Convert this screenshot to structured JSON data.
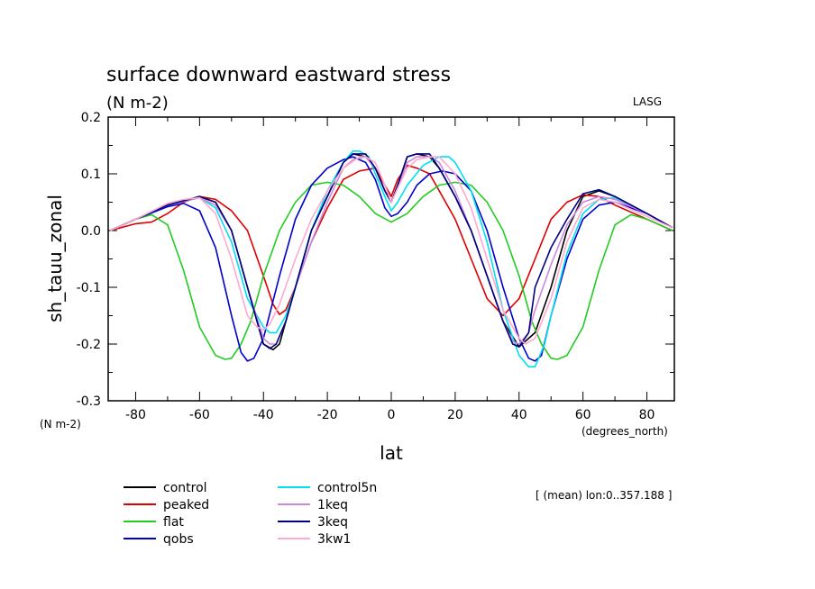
{
  "chart_data": {
    "type": "line",
    "title": "surface downward eastward stress",
    "subtitle": "(N m-2)",
    "corner_label": "LASG",
    "xlabel": "lat",
    "xunits": "(degrees_north)",
    "ylabel": "sh_tauu_zonal",
    "yunits": "(N m-2)",
    "xlim": [
      -88.6,
      88.6
    ],
    "ylim": [
      -0.3,
      0.2
    ],
    "xticks": [
      -80,
      -60,
      -40,
      -20,
      0,
      20,
      40,
      60,
      80
    ],
    "yticks": [
      0.2,
      0.1,
      0.0,
      -0.1,
      -0.2,
      -0.3
    ],
    "ytick_labels": [
      "0.2",
      "0.1",
      "0.0",
      "-0.1",
      "-0.2",
      "-0.3"
    ],
    "note": "[ (mean) lon:0..357.188 ]",
    "legend_position": "bottom-left",
    "series": [
      {
        "name": "control",
        "color": "#000000",
        "x": [
          -88,
          -80,
          -70,
          -60,
          -55,
          -50,
          -45,
          -40,
          -37,
          -35,
          -30,
          -25,
          -20,
          -15,
          -12,
          -8,
          -5,
          -2,
          0,
          2,
          5,
          8,
          12,
          15,
          20,
          25,
          30,
          35,
          40,
          45,
          50,
          55,
          60,
          65,
          70,
          80,
          88
        ],
        "y": [
          0.0,
          0.02,
          0.045,
          0.06,
          0.05,
          0.0,
          -0.1,
          -0.2,
          -0.21,
          -0.2,
          -0.1,
          0.0,
          0.06,
          0.12,
          0.135,
          0.13,
          0.11,
          0.07,
          0.05,
          0.08,
          0.13,
          0.135,
          0.13,
          0.11,
          0.06,
          0.0,
          -0.08,
          -0.16,
          -0.205,
          -0.18,
          -0.1,
          0.0,
          0.06,
          0.07,
          0.06,
          0.03,
          0.005
        ]
      },
      {
        "name": "peaked",
        "color": "#dd0000",
        "x": [
          -88,
          -80,
          -75,
          -70,
          -65,
          -60,
          -55,
          -50,
          -45,
          -40,
          -37,
          -35,
          -33,
          -30,
          -25,
          -20,
          -15,
          -10,
          -5,
          -2,
          0,
          2,
          5,
          8,
          12,
          15,
          20,
          25,
          30,
          35,
          40,
          45,
          50,
          55,
          60,
          65,
          70,
          80,
          88
        ],
        "y": [
          0.0,
          0.012,
          0.015,
          0.03,
          0.05,
          0.06,
          0.055,
          0.035,
          0.0,
          -0.08,
          -0.13,
          -0.148,
          -0.14,
          -0.1,
          -0.02,
          0.04,
          0.09,
          0.105,
          0.11,
          0.08,
          0.06,
          0.09,
          0.115,
          0.11,
          0.1,
          0.07,
          0.02,
          -0.05,
          -0.12,
          -0.15,
          -0.12,
          -0.05,
          0.02,
          0.05,
          0.063,
          0.06,
          0.045,
          0.02,
          0.0
        ]
      },
      {
        "name": "flat",
        "color": "#22cc22",
        "x": [
          -88,
          -80,
          -75,
          -70,
          -65,
          -60,
          -55,
          -52,
          -50,
          -47,
          -44,
          -40,
          -35,
          -30,
          -25,
          -20,
          -15,
          -10,
          -5,
          0,
          5,
          10,
          15,
          20,
          25,
          30,
          35,
          40,
          44,
          47,
          50,
          52,
          55,
          60,
          65,
          70,
          75,
          80,
          88
        ],
        "y": [
          0.0,
          0.02,
          0.028,
          0.01,
          -0.07,
          -0.17,
          -0.22,
          -0.227,
          -0.225,
          -0.2,
          -0.16,
          -0.08,
          0.0,
          0.05,
          0.08,
          0.085,
          0.08,
          0.06,
          0.03,
          0.015,
          0.03,
          0.06,
          0.08,
          0.085,
          0.08,
          0.05,
          0.0,
          -0.08,
          -0.16,
          -0.2,
          -0.225,
          -0.227,
          -0.22,
          -0.17,
          -0.07,
          0.01,
          0.028,
          0.02,
          0.0
        ]
      },
      {
        "name": "qobs",
        "color": "#0000cc",
        "x": [
          -88,
          -80,
          -70,
          -65,
          -60,
          -55,
          -50,
          -47,
          -45,
          -43,
          -40,
          -35,
          -30,
          -25,
          -20,
          -15,
          -12,
          -8,
          -5,
          -2,
          0,
          2,
          5,
          8,
          12,
          16,
          20,
          25,
          30,
          35,
          40,
          43,
          45,
          47,
          50,
          55,
          60,
          65,
          70,
          80,
          88
        ],
        "y": [
          0.0,
          0.02,
          0.042,
          0.048,
          0.035,
          -0.03,
          -0.15,
          -0.215,
          -0.23,
          -0.225,
          -0.19,
          -0.08,
          0.02,
          0.08,
          0.11,
          0.125,
          0.13,
          0.12,
          0.09,
          0.04,
          0.025,
          0.03,
          0.05,
          0.08,
          0.1,
          0.105,
          0.1,
          0.07,
          0.0,
          -0.1,
          -0.19,
          -0.225,
          -0.23,
          -0.22,
          -0.15,
          -0.05,
          0.02,
          0.045,
          0.05,
          0.03,
          0.005
        ]
      },
      {
        "name": "control5n",
        "color": "#00e0f0",
        "x": [
          -88,
          -80,
          -70,
          -60,
          -55,
          -50,
          -45,
          -40,
          -38,
          -36,
          -33,
          -30,
          -25,
          -20,
          -15,
          -12,
          -10,
          -7,
          -5,
          -2,
          0,
          2,
          5,
          10,
          15,
          18,
          20,
          25,
          30,
          35,
          40,
          43,
          45,
          48,
          50,
          55,
          60,
          65,
          70,
          80,
          88
        ],
        "y": [
          0.0,
          0.02,
          0.045,
          0.058,
          0.04,
          -0.02,
          -0.12,
          -0.17,
          -0.18,
          -0.18,
          -0.15,
          -0.1,
          0.0,
          0.07,
          0.12,
          0.14,
          0.14,
          0.13,
          0.1,
          0.06,
          0.035,
          0.05,
          0.08,
          0.115,
          0.13,
          0.13,
          0.12,
          0.07,
          -0.02,
          -0.14,
          -0.22,
          -0.24,
          -0.24,
          -0.2,
          -0.15,
          -0.04,
          0.03,
          0.055,
          0.058,
          0.03,
          0.005
        ]
      },
      {
        "name": "1keq",
        "color": "#cc88dd",
        "x": [
          -88,
          -80,
          -70,
          -60,
          -55,
          -50,
          -45,
          -40,
          -38,
          -36,
          -33,
          -30,
          -25,
          -20,
          -15,
          -12,
          -8,
          -5,
          -2,
          0,
          2,
          5,
          8,
          12,
          15,
          20,
          25,
          30,
          35,
          38,
          40,
          43,
          45,
          50,
          55,
          60,
          65,
          70,
          80,
          88
        ],
        "y": [
          0.0,
          0.02,
          0.045,
          0.058,
          0.045,
          0.0,
          -0.1,
          -0.19,
          -0.2,
          -0.2,
          -0.16,
          -0.1,
          -0.02,
          0.05,
          0.11,
          0.125,
          0.13,
          0.11,
          0.07,
          0.05,
          0.075,
          0.12,
          0.13,
          0.13,
          0.12,
          0.07,
          0.0,
          -0.08,
          -0.16,
          -0.195,
          -0.2,
          -0.18,
          -0.14,
          -0.06,
          0.01,
          0.05,
          0.06,
          0.055,
          0.03,
          0.005
        ]
      },
      {
        "name": "3keq",
        "color": "#000080",
        "x": [
          -88,
          -80,
          -70,
          -60,
          -55,
          -50,
          -45,
          -40,
          -38,
          -36,
          -33,
          -30,
          -25,
          -20,
          -15,
          -12,
          -8,
          -5,
          -2,
          0,
          2,
          5,
          8,
          12,
          15,
          20,
          25,
          30,
          35,
          38,
          40,
          43,
          45,
          50,
          55,
          60,
          65,
          70,
          80,
          88
        ],
        "y": [
          0.0,
          0.02,
          0.045,
          0.06,
          0.05,
          0.0,
          -0.1,
          -0.2,
          -0.208,
          -0.2,
          -0.16,
          -0.1,
          0.0,
          0.06,
          0.12,
          0.135,
          0.135,
          0.11,
          0.07,
          0.05,
          0.08,
          0.13,
          0.135,
          0.135,
          0.11,
          0.06,
          0.0,
          -0.08,
          -0.16,
          -0.2,
          -0.205,
          -0.18,
          -0.1,
          -0.03,
          0.02,
          0.065,
          0.072,
          0.06,
          0.03,
          0.005
        ]
      },
      {
        "name": "3kw1",
        "color": "#ffaacc",
        "x": [
          -88,
          -80,
          -70,
          -65,
          -60,
          -55,
          -50,
          -45,
          -42,
          -40,
          -38,
          -35,
          -30,
          -25,
          -20,
          -15,
          -10,
          -8,
          -5,
          -2,
          0,
          2,
          5,
          8,
          12,
          15,
          20,
          25,
          30,
          35,
          40,
          42,
          45,
          50,
          55,
          60,
          65,
          70,
          80,
          88
        ],
        "y": [
          0.0,
          0.02,
          0.048,
          0.055,
          0.058,
          0.03,
          -0.05,
          -0.15,
          -0.17,
          -0.175,
          -0.165,
          -0.13,
          -0.05,
          0.02,
          0.07,
          0.11,
          0.13,
          0.13,
          0.12,
          0.08,
          0.05,
          0.075,
          0.11,
          0.125,
          0.13,
          0.13,
          0.1,
          0.04,
          -0.05,
          -0.14,
          -0.19,
          -0.2,
          -0.19,
          -0.12,
          -0.02,
          0.04,
          0.055,
          0.05,
          0.025,
          0.005
        ]
      }
    ]
  }
}
